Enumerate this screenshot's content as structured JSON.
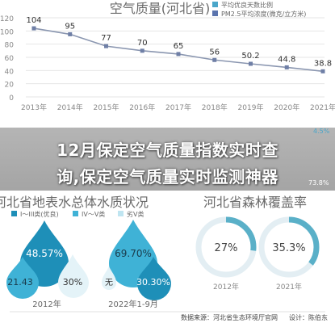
{
  "colors": {
    "line": "#8a96b0",
    "marker": "#6f7fa6",
    "legend_marker_blue": "#5a73ad",
    "legend_marker_teal": "#4aa6c9",
    "ring_teal": "#5ab0c8",
    "ring_track": "#e3eef3",
    "drop_dark": "#1e8fb8",
    "drop_mid": "#3fb2d6",
    "drop_light": "#bfe5f1",
    "drop_pale": "#e4f3f8",
    "axis_text": "#888888",
    "title_text": "#6a6a6a"
  },
  "overlay": {
    "line1": "12月保定空气质量指数实时查",
    "line2": "询,保定空气质量实时监测神器"
  },
  "chart_data": [
    {
      "type": "line",
      "title": "空气质量(河北省)",
      "legend": [
        "平均优良天数比例",
        "PM2.5平均浓度(微克/立方米)"
      ],
      "x": [
        "2013年",
        "2014年",
        "2015年",
        "2016年",
        "2017年",
        "2018年",
        "2019年",
        "2020年",
        "2021年"
      ],
      "series": [
        {
          "values": [
            104,
            95,
            77,
            70,
            65,
            56,
            50.2,
            44.8,
            38.8
          ]
        }
      ],
      "y_ticks": [
        0,
        20,
        40,
        60,
        80,
        100,
        120
      ],
      "ylim": [
        0,
        120
      ],
      "grid": true,
      "right_edge_fragments": [
        "4.5%",
        "73.8%"
      ]
    },
    {
      "type": "pie",
      "title": "河北省地表水总体水质状况",
      "legend": [
        "I～III类(优良)",
        "IV～V类",
        "劣V类"
      ],
      "groups": [
        {
          "label": "2012年",
          "values": [
            48.57,
            21.43,
            30
          ],
          "value_labels": [
            "48.57%",
            "21.43",
            "30%"
          ]
        },
        {
          "label": "2022年1-9月",
          "values": [
            69.7,
            30.3,
            0
          ],
          "value_labels": [
            "69.70%",
            "30.30%",
            "无"
          ]
        }
      ]
    },
    {
      "type": "pie",
      "title": "河北省森林覆盖率",
      "groups": [
        {
          "label": "2012年",
          "value": 27,
          "value_label": "27%"
        },
        {
          "label": "2021年",
          "value": 35.3,
          "value_label": "35.3%"
        }
      ]
    }
  ],
  "footer": {
    "source": "数据来源：河北省生态环境厅官网",
    "design": "设计：陈伯东"
  }
}
